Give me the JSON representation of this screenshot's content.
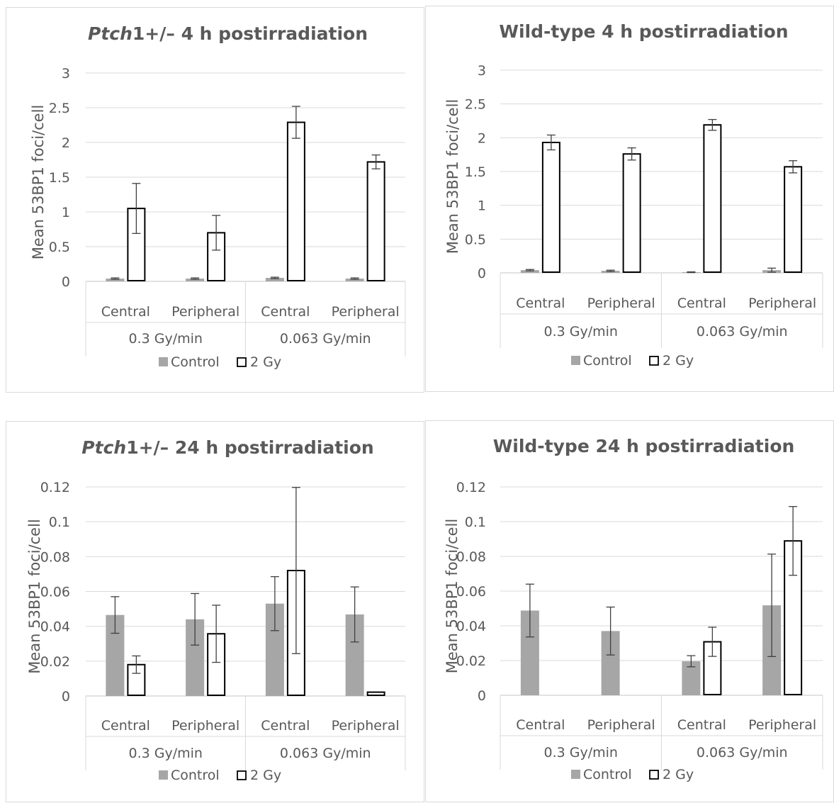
{
  "chart_data": [
    {
      "type": "bar",
      "title_italic": "Ptch",
      "title": "1+/– 4 h postirradiation",
      "ylabel": "Mean 53BP1 foci/cell",
      "xlabel": "",
      "ylim": [
        0,
        3
      ],
      "yticks": [
        "0",
        "0.5",
        "1",
        "1.5",
        "2",
        "2.5",
        "3"
      ],
      "ytick_values": [
        0,
        0.5,
        1,
        1.5,
        2,
        2.5,
        3
      ],
      "categories": [
        "Central",
        "Peripheral",
        "Central",
        "Peripheral"
      ],
      "groups": [
        {
          "label": "0.3 Gy/min",
          "span": 2
        },
        {
          "label": "0.063 Gy/min",
          "span": 2
        }
      ],
      "series": [
        {
          "name": "Control",
          "values": [
            0.04,
            0.04,
            0.05,
            0.04
          ],
          "errors": [
            0.01,
            0.01,
            0.01,
            0.01
          ]
        },
        {
          "name": "2 Gy",
          "values": [
            1.05,
            0.7,
            2.29,
            1.72
          ],
          "errors": [
            0.36,
            0.25,
            0.23,
            0.1
          ]
        }
      ],
      "grid": true,
      "legend": "bottom"
    },
    {
      "type": "bar",
      "title_italic": "",
      "title": "Wild-type 4 h postirradiation",
      "ylabel": "Mean 53BP1 foci/cell",
      "xlabel": "",
      "ylim": [
        0,
        3
      ],
      "yticks": [
        "0",
        "0.5",
        "1",
        "1.5",
        "2",
        "2.5",
        "3"
      ],
      "ytick_values": [
        0,
        0.5,
        1,
        1.5,
        2,
        2.5,
        3
      ],
      "categories": [
        "Central",
        "Peripheral",
        "Central",
        "Peripheral"
      ],
      "groups": [
        {
          "label": "0.3 Gy/min",
          "span": 2
        },
        {
          "label": "0.063 Gy/min",
          "span": 2
        }
      ],
      "series": [
        {
          "name": "Control",
          "values": [
            0.04,
            0.03,
            0.01,
            0.04
          ],
          "errors": [
            0.01,
            0.01,
            0.005,
            0.03
          ]
        },
        {
          "name": "2 Gy",
          "values": [
            1.93,
            1.76,
            2.19,
            1.57
          ],
          "errors": [
            0.11,
            0.09,
            0.08,
            0.09
          ]
        }
      ],
      "grid": true,
      "legend": "bottom"
    },
    {
      "type": "bar",
      "title_italic": "Ptch",
      "title": "1+/– 24 h postirradiation",
      "ylabel": "Mean 53BP1 foci/cell",
      "xlabel": "",
      "ylim": [
        0,
        0.12
      ],
      "yticks": [
        "0",
        "0.02",
        "0.04",
        "0.06",
        "0.08",
        "0.1",
        "0.12"
      ],
      "ytick_values": [
        0,
        0.02,
        0.04,
        0.06,
        0.08,
        0.1,
        0.12
      ],
      "categories": [
        "Central",
        "Peripheral",
        "Central",
        "Peripheral"
      ],
      "groups": [
        {
          "label": "0.3 Gy/min",
          "span": 2
        },
        {
          "label": "0.063 Gy/min",
          "span": 2
        }
      ],
      "series": [
        {
          "name": "Control",
          "values": [
            0.0465,
            0.044,
            0.053,
            0.0468
          ],
          "errors": [
            0.0105,
            0.0148,
            0.0155,
            0.0158
          ]
        },
        {
          "name": "2 Gy",
          "values": [
            0.018,
            0.0357,
            0.072,
            0.0022
          ],
          "errors": [
            0.005,
            0.0164,
            0.0477,
            0
          ]
        }
      ],
      "grid": true,
      "legend": "bottom"
    },
    {
      "type": "bar",
      "title_italic": "",
      "title": "Wild-type 24 h postirradiation",
      "ylabel": "Mean 53BP1 foci/cell",
      "xlabel": "",
      "ylim": [
        0,
        0.12
      ],
      "yticks": [
        "0",
        "0.02",
        "0.04",
        "0.06",
        "0.08",
        "0.1",
        "0.12"
      ],
      "ytick_values": [
        0,
        0.02,
        0.04,
        0.06,
        0.08,
        0.1,
        0.12
      ],
      "categories": [
        "Central",
        "Peripheral",
        "Central",
        "Peripheral"
      ],
      "groups": [
        {
          "label": "0.3 Gy/min",
          "span": 2
        },
        {
          "label": "0.063 Gy/min",
          "span": 2
        }
      ],
      "series": [
        {
          "name": "Control",
          "values": [
            0.0488,
            0.037,
            0.0196,
            0.0518
          ],
          "errors": [
            0.0152,
            0.0138,
            0.0032,
            0.0295
          ]
        },
        {
          "name": "2 Gy",
          "values": [
            0,
            0,
            0.0308,
            0.0889
          ],
          "errors": [
            0,
            0,
            0.0084,
            0.0198
          ]
        }
      ],
      "grid": true,
      "legend": "bottom"
    }
  ],
  "colors": {
    "control_fill": "#a6a6a6",
    "dose_fill": "#ffffff",
    "dose_stroke": "#000000",
    "grid": "#d9d9d9",
    "text": "#595959",
    "error_bar": "#404040"
  }
}
